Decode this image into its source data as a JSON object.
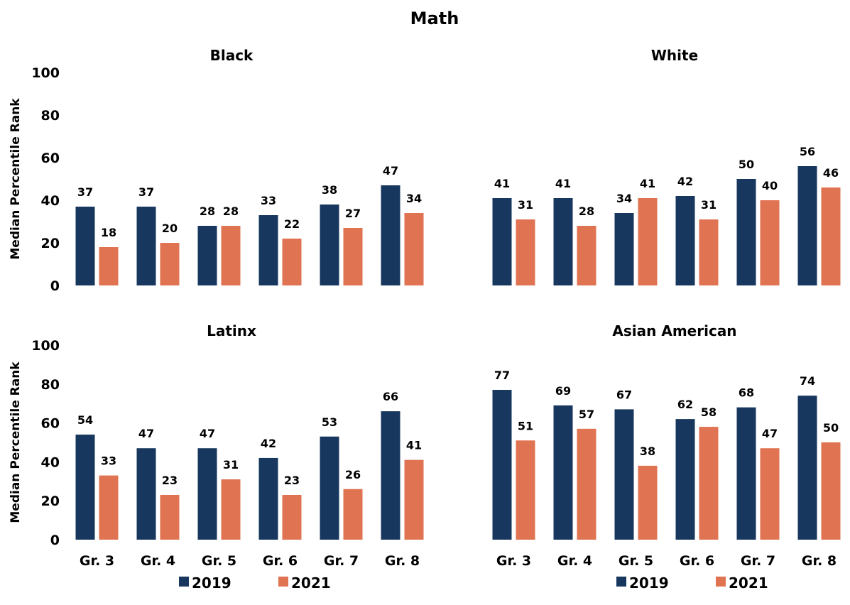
{
  "title": "Math",
  "legend": [
    "2019",
    "2021"
  ],
  "chart_data": [
    {
      "type": "bar",
      "title": "Black",
      "ylabel": "Median Percentile Rank",
      "xlabel": "",
      "ylim": [
        0,
        100
      ],
      "yticks": [
        "0",
        "20",
        "40",
        "60",
        "80",
        "100"
      ],
      "categories": [
        "Gr. 3",
        "Gr. 4",
        "Gr. 5",
        "Gr. 6",
        "Gr. 7",
        "Gr. 8"
      ],
      "show_category_labels": false,
      "series": [
        {
          "name": "2019",
          "color": "#17375e",
          "values": [
            37,
            37,
            28,
            33,
            38,
            47
          ]
        },
        {
          "name": "2021",
          "color": "#e07352",
          "values": [
            18,
            20,
            28,
            22,
            27,
            34
          ]
        }
      ]
    },
    {
      "type": "bar",
      "title": "White",
      "ylabel": "",
      "xlabel": "",
      "ylim": [
        0,
        100
      ],
      "yticks": [],
      "categories": [
        "Gr. 3",
        "Gr. 4",
        "Gr. 5",
        "Gr. 6",
        "Gr. 7",
        "Gr. 8"
      ],
      "show_category_labels": false,
      "series": [
        {
          "name": "2019",
          "color": "#17375e",
          "values": [
            41,
            41,
            34,
            42,
            50,
            56
          ]
        },
        {
          "name": "2021",
          "color": "#e07352",
          "values": [
            31,
            28,
            41,
            31,
            40,
            46
          ]
        }
      ]
    },
    {
      "type": "bar",
      "title": "Latinx",
      "ylabel": "Median Percentile Rank",
      "xlabel": "",
      "ylim": [
        0,
        100
      ],
      "yticks": [
        "0",
        "20",
        "40",
        "60",
        "80",
        "100"
      ],
      "categories": [
        "Gr. 3",
        "Gr. 4",
        "Gr. 5",
        "Gr. 6",
        "Gr. 7",
        "Gr. 8"
      ],
      "show_category_labels": true,
      "series": [
        {
          "name": "2019",
          "color": "#17375e",
          "values": [
            54,
            47,
            47,
            42,
            53,
            66
          ]
        },
        {
          "name": "2021",
          "color": "#e07352",
          "values": [
            33,
            23,
            31,
            23,
            26,
            41
          ]
        }
      ]
    },
    {
      "type": "bar",
      "title": "Asian American",
      "ylabel": "",
      "xlabel": "",
      "ylim": [
        0,
        100
      ],
      "yticks": [],
      "categories": [
        "Gr. 3",
        "Gr. 4",
        "Gr. 5",
        "Gr. 6",
        "Gr. 7",
        "Gr. 8"
      ],
      "show_category_labels": true,
      "series": [
        {
          "name": "2019",
          "color": "#17375e",
          "values": [
            77,
            69,
            67,
            62,
            68,
            74
          ]
        },
        {
          "name": "2021",
          "color": "#e07352",
          "values": [
            51,
            57,
            38,
            58,
            47,
            50
          ]
        }
      ]
    }
  ]
}
